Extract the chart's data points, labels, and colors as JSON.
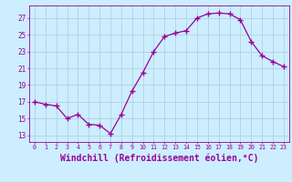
{
  "x": [
    0,
    1,
    2,
    3,
    4,
    5,
    6,
    7,
    8,
    9,
    10,
    11,
    12,
    13,
    14,
    15,
    16,
    17,
    18,
    19,
    20,
    21,
    22,
    23
  ],
  "y": [
    17.0,
    16.7,
    16.5,
    15.0,
    15.5,
    14.3,
    14.2,
    13.2,
    15.5,
    18.3,
    20.5,
    23.0,
    24.8,
    25.2,
    25.5,
    27.0,
    27.5,
    27.6,
    27.5,
    26.8,
    24.2,
    22.5,
    21.8,
    21.2
  ],
  "line_color": "#990099",
  "marker": "+",
  "marker_size": 4,
  "marker_color": "#990099",
  "bg_color": "#cceeff",
  "grid_color": "#aaccdd",
  "tick_color": "#990099",
  "xlabel": "Windchill (Refroidissement éolien,°C)",
  "xlabel_fontsize": 7,
  "ylabel_ticks": [
    13,
    15,
    17,
    19,
    21,
    23,
    25,
    27
  ],
  "xlim": [
    -0.5,
    23.5
  ],
  "ylim": [
    12.2,
    28.5
  ]
}
